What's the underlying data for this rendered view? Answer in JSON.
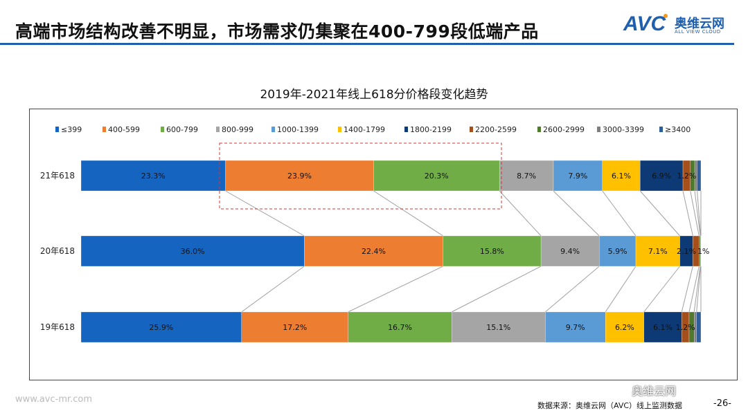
{
  "header": {
    "title": "高端市场结构改善不明显，市场需求仍集聚在400-799段低端产品",
    "logo_text": "AVC",
    "logo_cn": "奥维云网",
    "logo_en": "ALL VIEW CLOUD"
  },
  "chart_data": {
    "type": "bar",
    "orientation": "horizontal",
    "stacked": "100%",
    "title": "2019年-2021年线上618分价格段变化趋势",
    "legend_position": "top",
    "categories": [
      "21年618",
      "20年618",
      "19年618"
    ],
    "series": [
      {
        "name": "≤399",
        "color": "#1565c0",
        "values": [
          23.3,
          36.0,
          25.9
        ],
        "labels": [
          "23.3%",
          "36.0%",
          "25.9%"
        ]
      },
      {
        "name": "400-599",
        "color": "#ed7d31",
        "values": [
          23.9,
          22.4,
          17.2
        ],
        "labels": [
          "23.9%",
          "22.4%",
          "17.2%"
        ]
      },
      {
        "name": "600-799",
        "color": "#70ad47",
        "values": [
          20.3,
          15.8,
          16.7
        ],
        "labels": [
          "20.3%",
          "15.8%",
          "16.7%"
        ]
      },
      {
        "name": "800-999",
        "color": "#a5a5a5",
        "values": [
          8.7,
          9.4,
          15.1
        ],
        "labels": [
          "8.7%",
          "9.4%",
          "15.1%"
        ]
      },
      {
        "name": "1000-1399",
        "color": "#5b9bd5",
        "values": [
          7.9,
          5.9,
          9.7
        ],
        "labels": [
          "7.9%",
          "5.9%",
          "9.7%"
        ]
      },
      {
        "name": "1400-1799",
        "color": "#ffc000",
        "values": [
          6.1,
          7.1,
          6.2
        ],
        "labels": [
          "6.1%",
          "7.1%",
          "6.2%"
        ]
      },
      {
        "name": "1800-2199",
        "color": "#0d3a75",
        "values": [
          6.9,
          2.1,
          6.1
        ],
        "labels": [
          "6.9%",
          "2.1%",
          "6.1%"
        ]
      },
      {
        "name": "2200-2599",
        "color": "#a5501a",
        "values": [
          1.2,
          1.0,
          1.2
        ],
        "labels": [
          "1.2%",
          "1%",
          "1.2%"
        ]
      },
      {
        "name": "2600-2999",
        "color": "#4f7a2e",
        "values": [
          0.7,
          0.2,
          0.8
        ],
        "labels": [
          "",
          "",
          ""
        ]
      },
      {
        "name": "3000-3399",
        "color": "#7f7f7f",
        "values": [
          0.4,
          0.05,
          0.4
        ],
        "labels": [
          "",
          "",
          ""
        ]
      },
      {
        "name": "≥3400",
        "color": "#2e5f9a",
        "values": [
          0.6,
          0.05,
          0.7
        ],
        "labels": [
          "",
          "",
          ""
        ]
      }
    ],
    "highlight": {
      "category": "21年618",
      "series": [
        "400-599",
        "600-799"
      ],
      "color": "#e03030"
    }
  },
  "footer": {
    "website": "www.avc-mr.com",
    "source": "数据来源：奥维云网（AVC）线上监测数据",
    "page": "-26-",
    "wechat": "奥维云网"
  }
}
